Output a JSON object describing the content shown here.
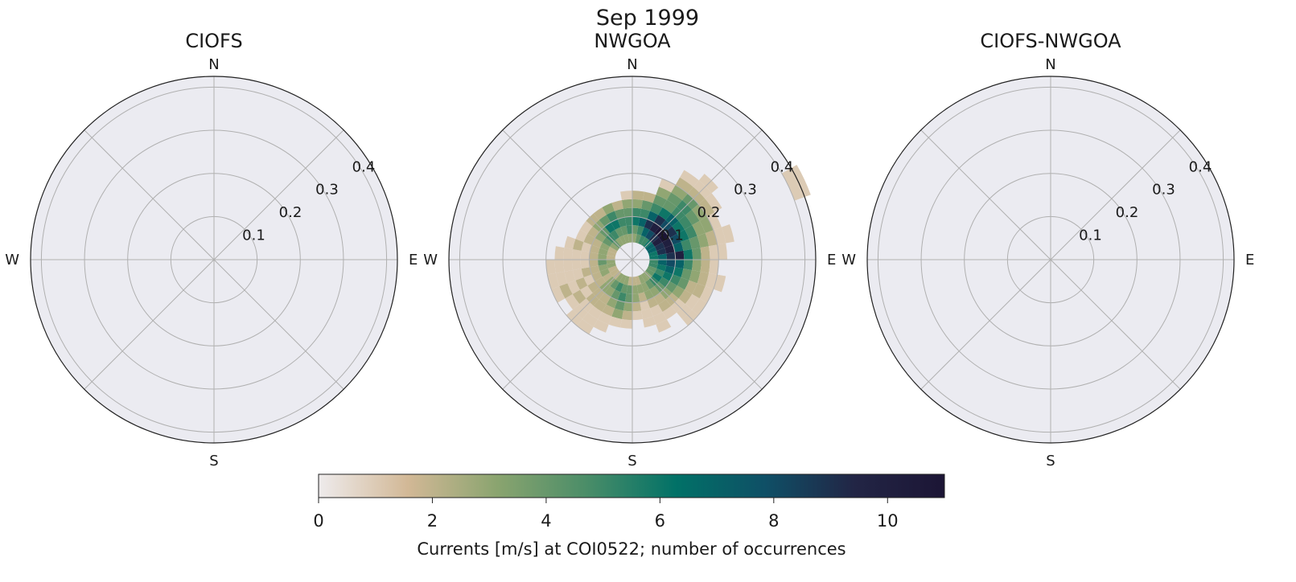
{
  "figure_title": "Sep 1999",
  "colorbar": {
    "label": "Currents [m/s] at COI0522; number of occurrences",
    "min": 0,
    "max": 11,
    "ticks": [
      "0",
      "2",
      "4",
      "6",
      "8",
      "10"
    ],
    "colors": [
      "#eeebec",
      "#d2b896",
      "#8aa46f",
      "#4a8d68",
      "#017167",
      "#0f4f66",
      "#222545",
      "#1c1535"
    ]
  },
  "chart_data": [
    {
      "type": "heatmap",
      "polar": true,
      "title": "CIOFS",
      "direction_labels": [
        "N",
        "E",
        "S",
        "W"
      ],
      "radial_ticks": [
        "0.1",
        "0.2",
        "0.3",
        "0.4"
      ],
      "rlim": [
        0,
        0.425
      ],
      "direction_bins": 36,
      "speed_bin_width": 0.02,
      "cells": []
    },
    {
      "type": "heatmap",
      "polar": true,
      "title": "NWGOA",
      "direction_labels": [
        "N",
        "E",
        "S",
        "W"
      ],
      "radial_ticks": [
        "0.1",
        "0.2",
        "0.3",
        "0.4"
      ],
      "rlim": [
        0,
        0.425
      ],
      "direction_bins": 36,
      "speed_bin_width": 0.02,
      "cells": [
        [
          5,
          0.04,
          3
        ],
        [
          5,
          0.06,
          4
        ],
        [
          5,
          0.08,
          6
        ],
        [
          5,
          0.1,
          5
        ],
        [
          5,
          0.12,
          3
        ],
        [
          5,
          0.14,
          2
        ],
        [
          15,
          0.04,
          4
        ],
        [
          15,
          0.06,
          5
        ],
        [
          15,
          0.08,
          7
        ],
        [
          15,
          0.1,
          5
        ],
        [
          15,
          0.12,
          4
        ],
        [
          15,
          0.14,
          2
        ],
        [
          25,
          0.04,
          5
        ],
        [
          25,
          0.06,
          7
        ],
        [
          25,
          0.08,
          9
        ],
        [
          25,
          0.1,
          7
        ],
        [
          25,
          0.12,
          5
        ],
        [
          25,
          0.14,
          4
        ],
        [
          25,
          0.16,
          3
        ],
        [
          25,
          0.18,
          1
        ],
        [
          35,
          0.04,
          5
        ],
        [
          35,
          0.06,
          8
        ],
        [
          35,
          0.08,
          10
        ],
        [
          35,
          0.1,
          9
        ],
        [
          35,
          0.12,
          6
        ],
        [
          35,
          0.14,
          4
        ],
        [
          35,
          0.16,
          4
        ],
        [
          35,
          0.18,
          3
        ],
        [
          35,
          0.2,
          2
        ],
        [
          35,
          0.22,
          1
        ],
        [
          45,
          0.04,
          6
        ],
        [
          45,
          0.06,
          9
        ],
        [
          45,
          0.08,
          11
        ],
        [
          45,
          0.1,
          8
        ],
        [
          45,
          0.12,
          7
        ],
        [
          45,
          0.14,
          5
        ],
        [
          45,
          0.16,
          5
        ],
        [
          45,
          0.18,
          4
        ],
        [
          45,
          0.2,
          2
        ],
        [
          45,
          0.22,
          1
        ],
        [
          45,
          0.24,
          1
        ],
        [
          55,
          0.04,
          7
        ],
        [
          55,
          0.06,
          10
        ],
        [
          55,
          0.08,
          11
        ],
        [
          55,
          0.1,
          9
        ],
        [
          55,
          0.12,
          6
        ],
        [
          55,
          0.14,
          5
        ],
        [
          55,
          0.16,
          4
        ],
        [
          55,
          0.18,
          3
        ],
        [
          55,
          0.2,
          2
        ],
        [
          55,
          0.22,
          1
        ],
        [
          65,
          0.04,
          7
        ],
        [
          65,
          0.06,
          9
        ],
        [
          65,
          0.08,
          10
        ],
        [
          65,
          0.1,
          8
        ],
        [
          65,
          0.12,
          6
        ],
        [
          65,
          0.14,
          5
        ],
        [
          65,
          0.16,
          3
        ],
        [
          65,
          0.18,
          3
        ],
        [
          65,
          0.2,
          1
        ],
        [
          65,
          0.4,
          1
        ],
        [
          65,
          0.42,
          1
        ],
        [
          75,
          0.04,
          6
        ],
        [
          75,
          0.06,
          9
        ],
        [
          75,
          0.08,
          10
        ],
        [
          75,
          0.1,
          7
        ],
        [
          75,
          0.12,
          5
        ],
        [
          75,
          0.14,
          4
        ],
        [
          75,
          0.16,
          3
        ],
        [
          75,
          0.18,
          2
        ],
        [
          75,
          0.2,
          1
        ],
        [
          75,
          0.22,
          1
        ],
        [
          85,
          0.04,
          6
        ],
        [
          85,
          0.06,
          7
        ],
        [
          85,
          0.08,
          9
        ],
        [
          85,
          0.1,
          10
        ],
        [
          85,
          0.12,
          6
        ],
        [
          85,
          0.14,
          4
        ],
        [
          85,
          0.16,
          2
        ],
        [
          85,
          0.18,
          1
        ],
        [
          85,
          0.2,
          1
        ],
        [
          95,
          0.04,
          5
        ],
        [
          95,
          0.06,
          7
        ],
        [
          95,
          0.08,
          8
        ],
        [
          95,
          0.1,
          7
        ],
        [
          95,
          0.12,
          5
        ],
        [
          95,
          0.14,
          3
        ],
        [
          95,
          0.16,
          2
        ],
        [
          95,
          0.18,
          1
        ],
        [
          105,
          0.04,
          5
        ],
        [
          105,
          0.06,
          6
        ],
        [
          105,
          0.08,
          7
        ],
        [
          105,
          0.1,
          6
        ],
        [
          105,
          0.12,
          4
        ],
        [
          105,
          0.14,
          3
        ],
        [
          105,
          0.16,
          2
        ],
        [
          105,
          0.18,
          1
        ],
        [
          105,
          0.2,
          1
        ],
        [
          115,
          0.04,
          4
        ],
        [
          115,
          0.06,
          5
        ],
        [
          115,
          0.08,
          6
        ],
        [
          115,
          0.1,
          5
        ],
        [
          115,
          0.12,
          4
        ],
        [
          115,
          0.14,
          2
        ],
        [
          115,
          0.16,
          2
        ],
        [
          115,
          0.18,
          1
        ],
        [
          125,
          0.04,
          4
        ],
        [
          125,
          0.06,
          6
        ],
        [
          125,
          0.08,
          5
        ],
        [
          125,
          0.1,
          4
        ],
        [
          125,
          0.12,
          3
        ],
        [
          125,
          0.14,
          2
        ],
        [
          125,
          0.16,
          1
        ],
        [
          125,
          0.18,
          1
        ],
        [
          135,
          0.04,
          3
        ],
        [
          135,
          0.06,
          5
        ],
        [
          135,
          0.08,
          4
        ],
        [
          135,
          0.1,
          3
        ],
        [
          135,
          0.12,
          2
        ],
        [
          135,
          0.14,
          1
        ],
        [
          135,
          0.16,
          1
        ],
        [
          135,
          0.18,
          1
        ],
        [
          145,
          0.04,
          3
        ],
        [
          145,
          0.06,
          4
        ],
        [
          145,
          0.08,
          3
        ],
        [
          145,
          0.1,
          2
        ],
        [
          145,
          0.12,
          2
        ],
        [
          145,
          0.14,
          1
        ],
        [
          155,
          0.04,
          3
        ],
        [
          155,
          0.06,
          3
        ],
        [
          155,
          0.08,
          3
        ],
        [
          155,
          0.1,
          2
        ],
        [
          155,
          0.12,
          1
        ],
        [
          155,
          0.14,
          1
        ],
        [
          155,
          0.16,
          1
        ],
        [
          165,
          0.04,
          2
        ],
        [
          165,
          0.06,
          3
        ],
        [
          165,
          0.08,
          2
        ],
        [
          165,
          0.1,
          1
        ],
        [
          165,
          0.12,
          1
        ],
        [
          165,
          0.14,
          1
        ],
        [
          175,
          0.04,
          2
        ],
        [
          175,
          0.06,
          3
        ],
        [
          175,
          0.08,
          3
        ],
        [
          175,
          0.1,
          2
        ],
        [
          175,
          0.12,
          1
        ],
        [
          185,
          0.04,
          2
        ],
        [
          185,
          0.06,
          4
        ],
        [
          185,
          0.08,
          4
        ],
        [
          185,
          0.1,
          3
        ],
        [
          185,
          0.12,
          2
        ],
        [
          185,
          0.14,
          1
        ],
        [
          195,
          0.04,
          3
        ],
        [
          195,
          0.06,
          4
        ],
        [
          195,
          0.08,
          5
        ],
        [
          195,
          0.1,
          4
        ],
        [
          195,
          0.12,
          3
        ],
        [
          195,
          0.14,
          1
        ],
        [
          205,
          0.04,
          3
        ],
        [
          205,
          0.06,
          5
        ],
        [
          205,
          0.08,
          4
        ],
        [
          205,
          0.1,
          3
        ],
        [
          205,
          0.12,
          2
        ],
        [
          205,
          0.14,
          1
        ],
        [
          205,
          0.16,
          1
        ],
        [
          215,
          0.04,
          3
        ],
        [
          215,
          0.06,
          4
        ],
        [
          215,
          0.08,
          3
        ],
        [
          215,
          0.1,
          2
        ],
        [
          215,
          0.12,
          2
        ],
        [
          215,
          0.14,
          1
        ],
        [
          215,
          0.16,
          1
        ],
        [
          215,
          0.18,
          1
        ],
        [
          225,
          0.04,
          2
        ],
        [
          225,
          0.06,
          3
        ],
        [
          225,
          0.08,
          3
        ],
        [
          225,
          0.1,
          2
        ],
        [
          225,
          0.12,
          2
        ],
        [
          225,
          0.14,
          1
        ],
        [
          225,
          0.16,
          1
        ],
        [
          225,
          0.18,
          1
        ],
        [
          235,
          0.04,
          2
        ],
        [
          235,
          0.06,
          2
        ],
        [
          235,
          0.08,
          2
        ],
        [
          235,
          0.1,
          2
        ],
        [
          235,
          0.12,
          1
        ],
        [
          235,
          0.14,
          2
        ],
        [
          235,
          0.16,
          1
        ],
        [
          245,
          0.04,
          2
        ],
        [
          245,
          0.06,
          3
        ],
        [
          245,
          0.08,
          2
        ],
        [
          245,
          0.1,
          1
        ],
        [
          245,
          0.12,
          2
        ],
        [
          245,
          0.14,
          1
        ],
        [
          245,
          0.16,
          2
        ],
        [
          245,
          0.18,
          1
        ],
        [
          255,
          0.04,
          3
        ],
        [
          255,
          0.06,
          3
        ],
        [
          255,
          0.08,
          2
        ],
        [
          255,
          0.1,
          2
        ],
        [
          255,
          0.12,
          1
        ],
        [
          255,
          0.14,
          1
        ],
        [
          255,
          0.16,
          1
        ],
        [
          255,
          0.18,
          1
        ],
        [
          265,
          0.04,
          3
        ],
        [
          265,
          0.06,
          4
        ],
        [
          265,
          0.08,
          2
        ],
        [
          265,
          0.1,
          1
        ],
        [
          265,
          0.12,
          1
        ],
        [
          265,
          0.14,
          1
        ],
        [
          265,
          0.16,
          1
        ],
        [
          265,
          0.18,
          1
        ],
        [
          275,
          0.04,
          2
        ],
        [
          275,
          0.06,
          3
        ],
        [
          275,
          0.08,
          2
        ],
        [
          275,
          0.1,
          1
        ],
        [
          275,
          0.12,
          1
        ],
        [
          275,
          0.14,
          1
        ],
        [
          275,
          0.16,
          1
        ],
        [
          285,
          0.04,
          2
        ],
        [
          285,
          0.06,
          3
        ],
        [
          285,
          0.08,
          2
        ],
        [
          285,
          0.1,
          1
        ],
        [
          285,
          0.12,
          2
        ],
        [
          285,
          0.14,
          1
        ],
        [
          295,
          0.04,
          2
        ],
        [
          295,
          0.06,
          3
        ],
        [
          295,
          0.08,
          2
        ],
        [
          295,
          0.1,
          2
        ],
        [
          295,
          0.12,
          1
        ],
        [
          305,
          0.04,
          3
        ],
        [
          305,
          0.06,
          4
        ],
        [
          305,
          0.08,
          3
        ],
        [
          305,
          0.1,
          2
        ],
        [
          305,
          0.12,
          1
        ],
        [
          315,
          0.04,
          4
        ],
        [
          315,
          0.06,
          5
        ],
        [
          315,
          0.08,
          4
        ],
        [
          315,
          0.1,
          3
        ],
        [
          315,
          0.12,
          2
        ],
        [
          325,
          0.04,
          3
        ],
        [
          325,
          0.06,
          5
        ],
        [
          325,
          0.08,
          6
        ],
        [
          325,
          0.1,
          4
        ],
        [
          325,
          0.12,
          2
        ],
        [
          335,
          0.04,
          3
        ],
        [
          335,
          0.06,
          4
        ],
        [
          335,
          0.08,
          6
        ],
        [
          335,
          0.1,
          5
        ],
        [
          335,
          0.12,
          3
        ],
        [
          345,
          0.04,
          3
        ],
        [
          345,
          0.06,
          4
        ],
        [
          345,
          0.08,
          5
        ],
        [
          345,
          0.1,
          4
        ],
        [
          345,
          0.12,
          2
        ],
        [
          355,
          0.04,
          3
        ],
        [
          355,
          0.06,
          5
        ],
        [
          355,
          0.08,
          5
        ],
        [
          355,
          0.1,
          4
        ],
        [
          355,
          0.12,
          3
        ],
        [
          355,
          0.14,
          1
        ]
      ]
    },
    {
      "type": "heatmap",
      "polar": true,
      "title": "CIOFS-NWGOA",
      "direction_labels": [
        "N",
        "E",
        "S",
        "W"
      ],
      "radial_ticks": [
        "0.1",
        "0.2",
        "0.3",
        "0.4"
      ],
      "rlim": [
        0,
        0.425
      ],
      "direction_bins": 36,
      "speed_bin_width": 0.02,
      "cells": []
    }
  ]
}
